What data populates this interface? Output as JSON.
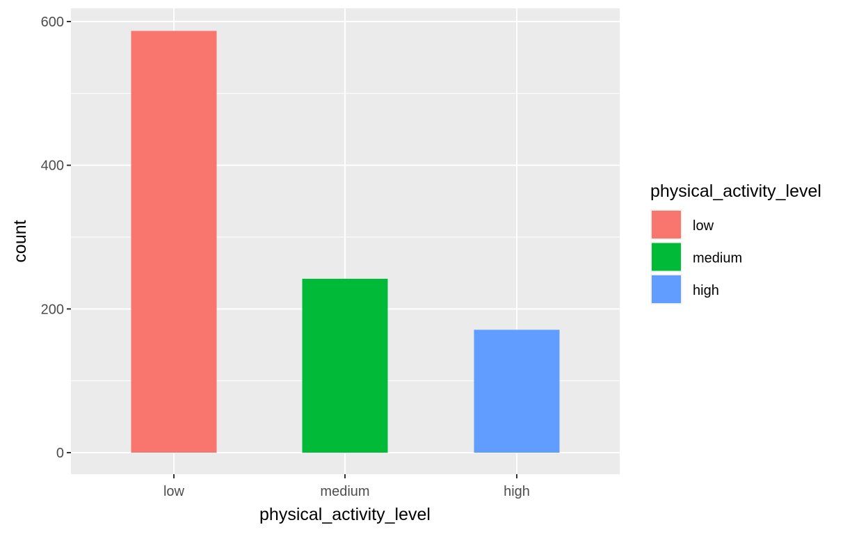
{
  "chart_data": {
    "type": "bar",
    "categories": [
      "low",
      "medium",
      "high"
    ],
    "values": [
      587,
      242,
      171
    ],
    "colors": [
      "#F8766D",
      "#00BA38",
      "#619CFF"
    ],
    "title": "",
    "xlabel": "physical_activity_level",
    "ylabel": "count",
    "ylim": [
      0,
      600
    ],
    "yticks": [
      0,
      200,
      400,
      600
    ],
    "grid": true,
    "panel_background": "#EBEBEB",
    "grid_color": "#FFFFFF",
    "legend": {
      "title": "physical_activity_level",
      "placement": "right",
      "entries": [
        "low",
        "medium",
        "high"
      ]
    }
  }
}
